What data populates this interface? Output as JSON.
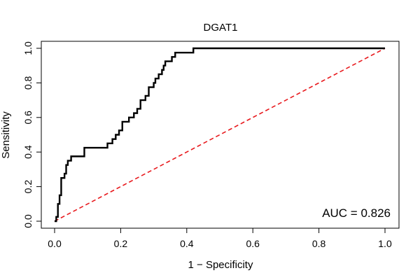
{
  "chart_data": {
    "type": "line",
    "title": "DGAT1",
    "xlabel": "1 − Specificity",
    "ylabel": "Sensitivity",
    "xlim": [
      0,
      1
    ],
    "ylim": [
      0,
      1
    ],
    "x_ticks": [
      "0.0",
      "0.2",
      "0.4",
      "0.6",
      "0.8",
      "1.0"
    ],
    "y_ticks": [
      "0.0",
      "0.2",
      "0.4",
      "0.6",
      "0.8",
      "1.0"
    ],
    "annotation": "AUC = 0.826",
    "colors": {
      "roc": "#000000",
      "reference": "#e8191d"
    },
    "series": [
      {
        "name": "ROC curve",
        "style": "solid",
        "x": [
          0,
          0.005,
          0.005,
          0.01,
          0.01,
          0.015,
          0.015,
          0.02,
          0.02,
          0.03,
          0.03,
          0.035,
          0.035,
          0.04,
          0.04,
          0.05,
          0.05,
          0.06,
          0.06,
          0.09,
          0.09,
          0.16,
          0.16,
          0.175,
          0.175,
          0.185,
          0.185,
          0.195,
          0.195,
          0.205,
          0.205,
          0.225,
          0.225,
          0.24,
          0.24,
          0.25,
          0.25,
          0.26,
          0.26,
          0.275,
          0.275,
          0.285,
          0.285,
          0.3,
          0.3,
          0.305,
          0.305,
          0.315,
          0.315,
          0.325,
          0.325,
          0.33,
          0.33,
          0.335,
          0.335,
          0.34,
          0.34,
          0.355,
          0.355,
          0.365,
          0.365,
          0.375,
          0.375,
          0.42,
          0.42,
          1.0
        ],
        "y": [
          0,
          0,
          0.025,
          0.025,
          0.1,
          0.1,
          0.15,
          0.15,
          0.25,
          0.25,
          0.275,
          0.275,
          0.325,
          0.325,
          0.35,
          0.35,
          0.375,
          0.375,
          0.375,
          0.375,
          0.425,
          0.425,
          0.45,
          0.45,
          0.475,
          0.475,
          0.5,
          0.5,
          0.525,
          0.525,
          0.575,
          0.575,
          0.6,
          0.6,
          0.625,
          0.625,
          0.65,
          0.65,
          0.7,
          0.7,
          0.725,
          0.725,
          0.775,
          0.775,
          0.8,
          0.8,
          0.825,
          0.825,
          0.85,
          0.85,
          0.875,
          0.875,
          0.9,
          0.9,
          0.925,
          0.925,
          0.925,
          0.925,
          0.95,
          0.95,
          0.975,
          0.975,
          0.975,
          0.975,
          1.0,
          1.0
        ]
      },
      {
        "name": "Reference line",
        "style": "dashed",
        "x": [
          0,
          1
        ],
        "y": [
          0,
          1
        ]
      }
    ]
  }
}
